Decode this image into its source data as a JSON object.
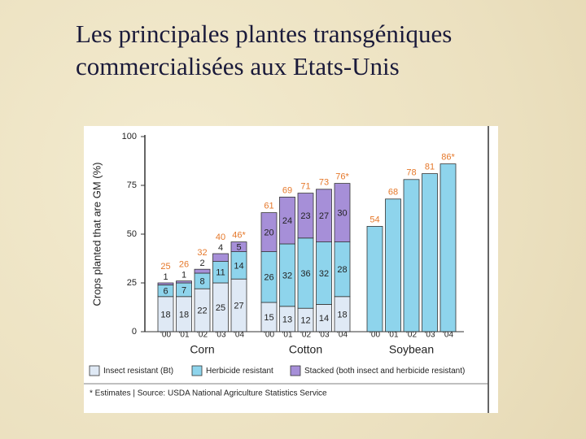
{
  "chart_data": {
    "type": "bar",
    "stacked": true,
    "title": "Les principales plantes transgéniques commercialisées aux Etats-Unis",
    "y_label": "Crops planted that are GM (%)",
    "ylim": [
      0,
      100
    ],
    "yticks": [
      0,
      25,
      50,
      75,
      100
    ],
    "groups": [
      {
        "name": "Corn",
        "categories": [
          "'00",
          "'01",
          "'02",
          "'03",
          "'04"
        ]
      },
      {
        "name": "Cotton",
        "categories": [
          "'00",
          "'01",
          "'02",
          "'03",
          "'04"
        ]
      },
      {
        "name": "Soybean",
        "categories": [
          "'00",
          "'01",
          "'02",
          "'03",
          "'04"
        ]
      }
    ],
    "series": [
      {
        "name": "Insect resistant (Bt)",
        "color": "#dfe9f5",
        "values": [
          18,
          18,
          22,
          25,
          27,
          15,
          13,
          12,
          14,
          18,
          null,
          null,
          null,
          null,
          null
        ]
      },
      {
        "name": "Herbicide resistant",
        "color": "#8ed4ec",
        "values": [
          6,
          7,
          8,
          11,
          14,
          26,
          32,
          36,
          32,
          28,
          54,
          68,
          78,
          81,
          86
        ]
      },
      {
        "name": "Stacked (both insect and herbicide resistant)",
        "color": "#a68fd8",
        "values": [
          1,
          1,
          2,
          4,
          5,
          20,
          24,
          23,
          27,
          30,
          null,
          null,
          null,
          null,
          null
        ]
      }
    ],
    "totals": {
      "color": "#e5782a",
      "values": [
        25,
        26,
        32,
        40,
        46,
        61,
        69,
        71,
        73,
        76,
        54,
        68,
        78,
        81,
        86
      ],
      "value_labels": [
        "25",
        "26",
        "32",
        "40",
        "46*",
        "61",
        "69",
        "71",
        "73",
        "76*",
        "54",
        "68",
        "78",
        "81",
        "86*"
      ]
    },
    "footnote": "* Estimates  |  Source: USDA National Agriculture Statistics Service"
  }
}
